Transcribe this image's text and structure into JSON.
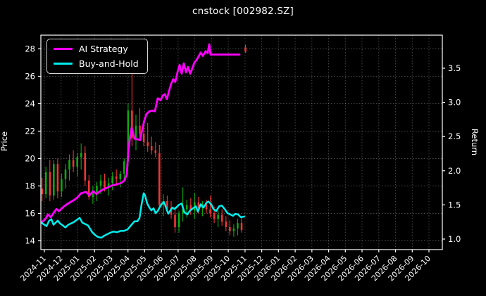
{
  "title": "cnstock [002982.SZ]",
  "legend": {
    "items": [
      {
        "label": "AI Strategy",
        "color": "#ff00ff"
      },
      {
        "label": "Buy-and-Hold",
        "color": "#00eded"
      }
    ]
  },
  "colors": {
    "background": "#000000",
    "text": "#ffffff",
    "grid": "#ffffff",
    "spine": "#ffffff",
    "candle_up": "#0caa10",
    "candle_down": "#ef3535",
    "ai_line": "#ff00ff",
    "bh_line": "#00eded"
  },
  "chart_data": {
    "type": "candlestick+line",
    "title": "cnstock [002982.SZ]",
    "price_axis": {
      "label": "Price",
      "ticks": [
        "14",
        "16",
        "18",
        "20",
        "22",
        "24",
        "26",
        "28"
      ],
      "tick_values": [
        14,
        16,
        18,
        20,
        22,
        24,
        26,
        28
      ],
      "range": [
        13.36,
        29.0
      ]
    },
    "return_axis": {
      "label": "Return",
      "ticks": [
        "1.0",
        "1.5",
        "2.0",
        "2.5",
        "3.0",
        "3.5"
      ],
      "tick_values": [
        1.0,
        1.5,
        2.0,
        2.5,
        3.0,
        3.5
      ],
      "range": [
        0.846,
        3.984
      ]
    },
    "x_axis": {
      "ticks": [
        "2024-11",
        "2024-12",
        "2025-01",
        "2025-02",
        "2025-03",
        "2025-04",
        "2025-05",
        "2025-06",
        "2025-07",
        "2025-08",
        "2025-09",
        "2025-10",
        "2025-11",
        "2025-12",
        "2026-01",
        "2026-02",
        "2026-03",
        "2026-04",
        "2026-05",
        "2026-06",
        "2026-07",
        "2026-08",
        "2026-09",
        "2026-10"
      ],
      "tick_month_index": [
        0,
        1,
        2,
        3,
        4,
        5,
        6,
        7,
        8,
        9,
        10,
        11,
        12,
        13,
        14,
        15,
        16,
        17,
        18,
        19,
        20,
        21,
        22,
        23
      ],
      "range_months": [
        -0.21,
        23.8
      ],
      "label_rotation_deg": -45
    },
    "grid": {
      "show": true,
      "dash": "1.5 2.5",
      "opacity": 0.3
    },
    "legend_position": "upper-left",
    "candles": {
      "axis": "price",
      "start_month": -0.14,
      "step_months": 0.234,
      "note": "weekly OHLC, Nov 2024 - Oct 2025, values [open,high,low,close]; final tiny candle is the stray red mark at top near 2025-11",
      "values": [
        [
          17.8,
          18.6,
          16.9,
          17.4
        ],
        [
          17.4,
          19.4,
          17.1,
          19.0
        ],
        [
          19.0,
          19.9,
          16.9,
          17.3
        ],
        [
          17.3,
          19.9,
          17.0,
          19.6
        ],
        [
          19.6,
          20.0,
          17.1,
          17.6
        ],
        [
          17.6,
          18.9,
          17.2,
          18.5
        ],
        [
          18.5,
          19.6,
          17.8,
          19.2
        ],
        [
          19.2,
          20.3,
          18.4,
          19.9
        ],
        [
          19.9,
          20.6,
          19.0,
          19.4
        ],
        [
          19.4,
          20.4,
          18.7,
          20.1
        ],
        [
          20.1,
          21.1,
          19.2,
          20.4
        ],
        [
          20.4,
          20.9,
          18.0,
          18.4
        ],
        [
          18.4,
          18.8,
          17.0,
          17.2
        ],
        [
          17.2,
          18.0,
          16.7,
          17.5
        ],
        [
          17.5,
          18.3,
          16.9,
          18.0
        ],
        [
          18.0,
          18.8,
          17.4,
          18.4
        ],
        [
          18.4,
          18.9,
          17.6,
          17.9
        ],
        [
          17.9,
          18.6,
          17.3,
          18.2
        ],
        [
          18.2,
          19.0,
          17.7,
          18.7
        ],
        [
          18.7,
          19.2,
          18.0,
          18.5
        ],
        [
          18.5,
          19.1,
          17.9,
          18.9
        ],
        [
          18.9,
          20.0,
          18.3,
          19.8
        ],
        [
          19.8,
          24.0,
          19.4,
          23.5
        ],
        [
          23.5,
          26.9,
          20.9,
          21.5
        ],
        [
          21.5,
          23.2,
          20.6,
          22.4
        ],
        [
          22.4,
          23.7,
          21.5,
          21.8
        ],
        [
          21.8,
          22.8,
          20.9,
          21.2
        ],
        [
          21.2,
          22.6,
          20.5,
          20.9
        ],
        [
          20.9,
          21.6,
          20.3,
          20.6
        ],
        [
          20.6,
          21.2,
          20.1,
          20.4
        ],
        [
          20.4,
          21.0,
          16.3,
          16.6
        ],
        [
          16.6,
          17.4,
          15.8,
          16.9
        ],
        [
          16.9,
          17.3,
          16.1,
          16.4
        ],
        [
          16.4,
          16.9,
          15.6,
          15.9
        ],
        [
          15.9,
          16.5,
          14.6,
          15.0
        ],
        [
          15.0,
          16.2,
          14.6,
          16.0
        ],
        [
          16.0,
          17.9,
          15.4,
          16.3
        ],
        [
          16.3,
          17.0,
          15.7,
          16.6
        ],
        [
          16.6,
          17.1,
          15.9,
          16.2
        ],
        [
          16.2,
          17.5,
          15.6,
          16.8
        ],
        [
          16.8,
          17.2,
          16.0,
          16.4
        ],
        [
          16.4,
          16.9,
          15.8,
          16.7
        ],
        [
          16.7,
          17.0,
          16.0,
          16.3
        ],
        [
          16.3,
          17.3,
          15.7,
          16.0
        ],
        [
          16.0,
          16.5,
          15.3,
          15.6
        ],
        [
          15.6,
          16.2,
          15.0,
          15.9
        ],
        [
          15.9,
          16.3,
          15.1,
          15.4
        ],
        [
          15.4,
          15.8,
          14.7,
          15.0
        ],
        [
          15.0,
          15.5,
          14.4,
          14.7
        ],
        [
          14.7,
          15.2,
          14.3,
          14.9
        ],
        [
          14.9,
          15.6,
          14.4,
          15.3
        ],
        [
          15.3,
          15.7,
          14.6,
          14.8
        ],
        [
          28.1,
          28.3,
          27.7,
          27.8
        ]
      ]
    },
    "series": [
      {
        "name": "AI Strategy",
        "axis": "return",
        "color": "#ff00ff",
        "width": 2.8,
        "points": [
          [
            -0.17,
            1.24
          ],
          [
            0.08,
            1.3
          ],
          [
            0.21,
            1.36
          ],
          [
            0.38,
            1.32
          ],
          [
            0.55,
            1.38
          ],
          [
            0.72,
            1.44
          ],
          [
            0.88,
            1.41
          ],
          [
            1.14,
            1.47
          ],
          [
            1.35,
            1.51
          ],
          [
            1.56,
            1.54
          ],
          [
            1.77,
            1.57
          ],
          [
            1.98,
            1.61
          ],
          [
            2.19,
            1.67
          ],
          [
            2.49,
            1.69
          ],
          [
            2.7,
            1.64
          ],
          [
            2.91,
            1.7
          ],
          [
            3.12,
            1.66
          ],
          [
            3.33,
            1.7
          ],
          [
            3.54,
            1.73
          ],
          [
            3.75,
            1.75
          ],
          [
            4.0,
            1.78
          ],
          [
            4.3,
            1.8
          ],
          [
            4.59,
            1.82
          ],
          [
            4.8,
            1.86
          ],
          [
            4.93,
            1.95
          ],
          [
            5.01,
            2.25
          ],
          [
            5.1,
            2.45
          ],
          [
            5.22,
            2.63
          ],
          [
            5.31,
            2.55
          ],
          [
            5.39,
            2.47
          ],
          [
            5.56,
            2.46
          ],
          [
            5.73,
            2.45
          ],
          [
            5.85,
            2.6
          ],
          [
            5.98,
            2.74
          ],
          [
            6.11,
            2.83
          ],
          [
            6.28,
            2.87
          ],
          [
            6.44,
            2.88
          ],
          [
            6.61,
            2.87
          ],
          [
            6.78,
            3.06
          ],
          [
            6.95,
            3.03
          ],
          [
            7.08,
            3.1
          ],
          [
            7.2,
            3.12
          ],
          [
            7.33,
            3.05
          ],
          [
            7.46,
            3.17
          ],
          [
            7.58,
            3.27
          ],
          [
            7.71,
            3.34
          ],
          [
            7.83,
            3.3
          ],
          [
            7.96,
            3.44
          ],
          [
            8.09,
            3.55
          ],
          [
            8.21,
            3.42
          ],
          [
            8.34,
            3.57
          ],
          [
            8.47,
            3.44
          ],
          [
            8.59,
            3.52
          ],
          [
            8.72,
            3.42
          ],
          [
            8.85,
            3.5
          ],
          [
            8.97,
            3.58
          ],
          [
            9.1,
            3.62
          ],
          [
            9.22,
            3.67
          ],
          [
            9.35,
            3.73
          ],
          [
            9.48,
            3.68
          ],
          [
            9.65,
            3.75
          ],
          [
            9.77,
            3.72
          ],
          [
            9.86,
            3.85
          ],
          [
            9.94,
            3.7
          ],
          [
            11.67,
            3.7
          ]
        ]
      },
      {
        "name": "Buy-and-Hold",
        "axis": "return",
        "color": "#00eded",
        "width": 2.5,
        "points": [
          [
            -0.17,
            1.24
          ],
          [
            0.0,
            1.21
          ],
          [
            0.13,
            1.19
          ],
          [
            0.29,
            1.27
          ],
          [
            0.42,
            1.29
          ],
          [
            0.55,
            1.21
          ],
          [
            0.67,
            1.24
          ],
          [
            0.8,
            1.27
          ],
          [
            0.93,
            1.23
          ],
          [
            1.1,
            1.2
          ],
          [
            1.26,
            1.17
          ],
          [
            1.43,
            1.21
          ],
          [
            1.6,
            1.23
          ],
          [
            1.77,
            1.25
          ],
          [
            1.94,
            1.28
          ],
          [
            2.11,
            1.31
          ],
          [
            2.27,
            1.24
          ],
          [
            2.44,
            1.22
          ],
          [
            2.61,
            1.2
          ],
          [
            2.74,
            1.15
          ],
          [
            2.86,
            1.1
          ],
          [
            3.03,
            1.06
          ],
          [
            3.2,
            1.03
          ],
          [
            3.41,
            1.02
          ],
          [
            3.58,
            1.05
          ],
          [
            3.75,
            1.07
          ],
          [
            3.92,
            1.09
          ],
          [
            4.13,
            1.11
          ],
          [
            4.34,
            1.1
          ],
          [
            4.55,
            1.12
          ],
          [
            4.76,
            1.12
          ],
          [
            4.97,
            1.14
          ],
          [
            5.18,
            1.2
          ],
          [
            5.39,
            1.26
          ],
          [
            5.56,
            1.26
          ],
          [
            5.69,
            1.31
          ],
          [
            5.81,
            1.5
          ],
          [
            5.94,
            1.67
          ],
          [
            6.02,
            1.64
          ],
          [
            6.15,
            1.52
          ],
          [
            6.28,
            1.46
          ],
          [
            6.4,
            1.42
          ],
          [
            6.53,
            1.45
          ],
          [
            6.65,
            1.38
          ],
          [
            6.78,
            1.41
          ],
          [
            6.91,
            1.47
          ],
          [
            7.03,
            1.52
          ],
          [
            7.16,
            1.54
          ],
          [
            7.29,
            1.45
          ],
          [
            7.41,
            1.37
          ],
          [
            7.54,
            1.42
          ],
          [
            7.66,
            1.46
          ],
          [
            7.79,
            1.44
          ],
          [
            7.92,
            1.47
          ],
          [
            8.04,
            1.5
          ],
          [
            8.21,
            1.52
          ],
          [
            8.38,
            1.39
          ],
          [
            8.55,
            1.36
          ],
          [
            8.72,
            1.42
          ],
          [
            8.89,
            1.45
          ],
          [
            9.06,
            1.48
          ],
          [
            9.18,
            1.4
          ],
          [
            9.35,
            1.51
          ],
          [
            9.52,
            1.46
          ],
          [
            9.69,
            1.53
          ],
          [
            9.81,
            1.55
          ],
          [
            9.98,
            1.51
          ],
          [
            10.11,
            1.44
          ],
          [
            10.28,
            1.41
          ],
          [
            10.45,
            1.48
          ],
          [
            10.61,
            1.49
          ],
          [
            10.78,
            1.44
          ],
          [
            10.95,
            1.38
          ],
          [
            11.12,
            1.36
          ],
          [
            11.29,
            1.34
          ],
          [
            11.41,
            1.37
          ],
          [
            11.58,
            1.36
          ],
          [
            11.75,
            1.32
          ],
          [
            11.96,
            1.33
          ]
        ]
      }
    ]
  }
}
